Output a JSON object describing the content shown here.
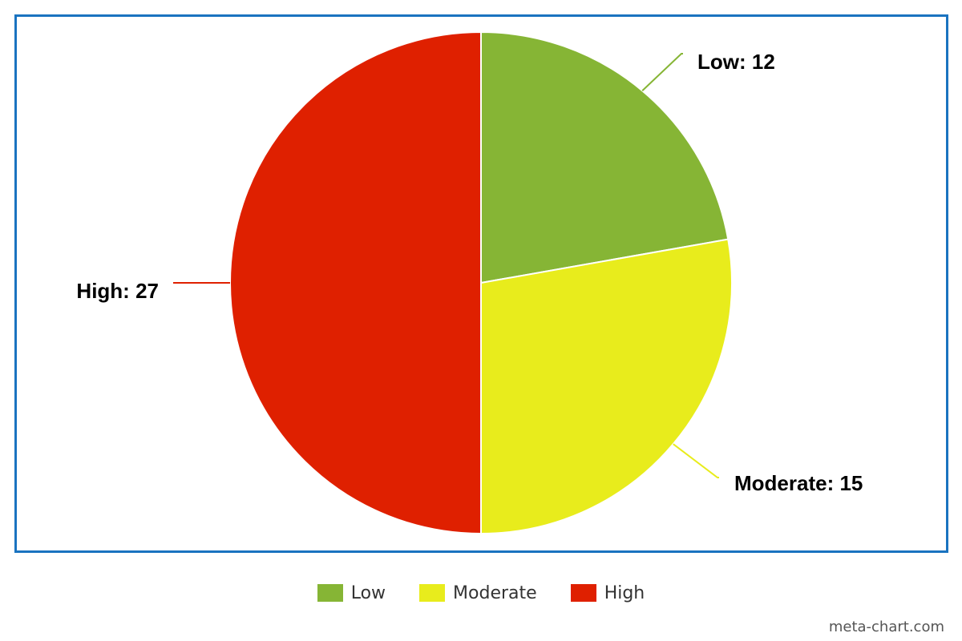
{
  "chart_data": {
    "type": "pie",
    "categories": [
      "Low",
      "Moderate",
      "High"
    ],
    "values": [
      12,
      15,
      27
    ],
    "colors": [
      "#86b535",
      "#e8ec1c",
      "#df2000"
    ],
    "data_labels": [
      "Low: 12",
      "Moderate: 15",
      "High: 27"
    ],
    "start_angle": "12 o'clock, clockwise",
    "legend": "bottom-center",
    "title": ""
  },
  "legend": {
    "items": [
      {
        "label": "Low",
        "color": "#86b535"
      },
      {
        "label": "Moderate",
        "color": "#e8ec1c"
      },
      {
        "label": "High",
        "color": "#df2000"
      }
    ]
  },
  "credit": "meta-chart.com",
  "frame_color": "#1a73c0"
}
